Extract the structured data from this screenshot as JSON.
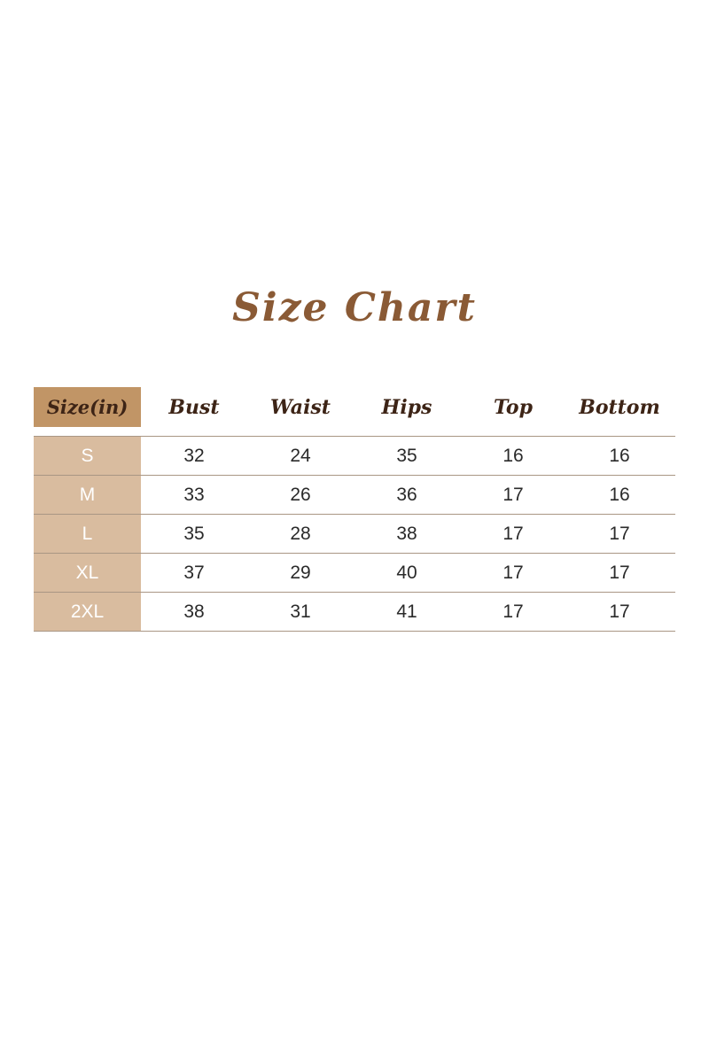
{
  "title": "Size Chart",
  "colors": {
    "title": "#8a5a35",
    "header_cell": "#c19566",
    "size_column": "#d9bc9f",
    "header_text": "#3d2416"
  },
  "headers": [
    "Size(in)",
    "Bust",
    "Waist",
    "Hips",
    "Top",
    "Bottom"
  ],
  "rows": [
    [
      "S",
      "32",
      "24",
      "35",
      "16",
      "16"
    ],
    [
      "M",
      "33",
      "26",
      "36",
      "17",
      "16"
    ],
    [
      "L",
      "35",
      "28",
      "38",
      "17",
      "17"
    ],
    [
      "XL",
      "37",
      "29",
      "40",
      "17",
      "17"
    ],
    [
      "2XL",
      "38",
      "31",
      "41",
      "17",
      "17"
    ]
  ]
}
